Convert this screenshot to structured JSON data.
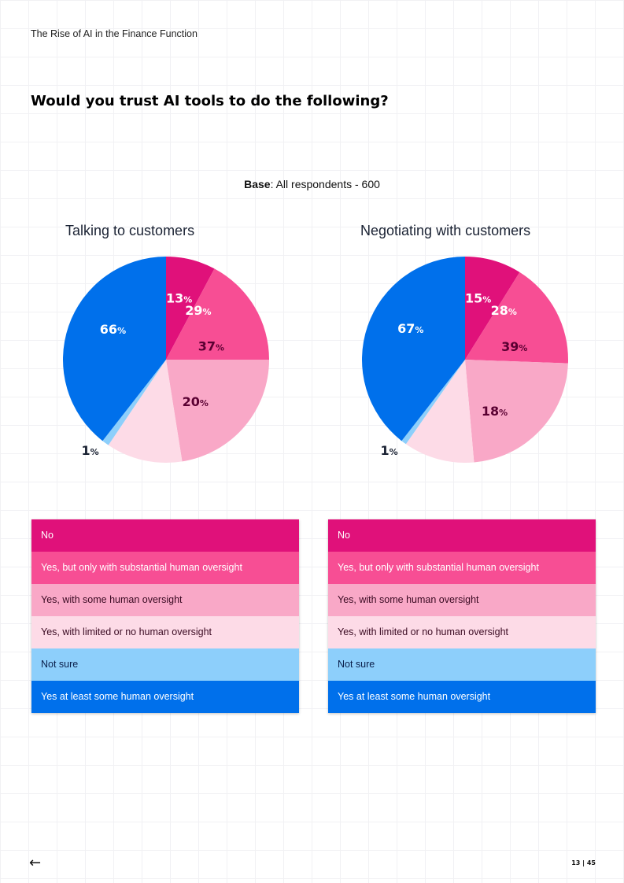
{
  "header": {
    "doc_title": "The Rise of AI in the Finance Function"
  },
  "question": "Would you trust AI tools to do the following?",
  "base": {
    "label": "Base",
    "text": ": All respondents -  600"
  },
  "colors": {
    "No": "#e0117a",
    "Substantial": "#f74e94",
    "Some": "#f9a8c7",
    "Limited": "#fddbe7",
    "NotSure": "#8dcffb",
    "AtLeastSome": "#0070eb"
  },
  "chart_data": [
    {
      "type": "pie",
      "title": "Talking to customers",
      "categories": [
        "No",
        "Yes, but only with substantial human oversight",
        "Yes, with some human oversight",
        "Yes, with limited or no human oversight",
        "Not sure",
        "Yes at least some human oversight"
      ],
      "values": [
        13,
        29,
        37,
        20,
        1,
        66
      ],
      "labels": [
        "13%",
        "29%",
        "37%",
        "20%",
        "1%",
        "66%"
      ]
    },
    {
      "type": "pie",
      "title": "Negotiating with customers",
      "categories": [
        "No",
        "Yes, but only with substantial human oversight",
        "Yes, with some human oversight",
        "Yes, with limited or no human oversight",
        "Not sure",
        "Yes at least some human oversight"
      ],
      "values": [
        15,
        28,
        39,
        18,
        1,
        67
      ],
      "labels": [
        "15%",
        "28%",
        "39%",
        "18%",
        "1%",
        "67%"
      ]
    }
  ],
  "legend": [
    "No",
    "Yes, but only with substantial human oversight",
    "Yes, with some human oversight",
    "Yes, with limited or no human oversight",
    "Not sure",
    "Yes at least some human oversight"
  ],
  "footer": {
    "back_icon": "arrow-left-icon",
    "arrow": "←",
    "page": "13 | 45"
  }
}
